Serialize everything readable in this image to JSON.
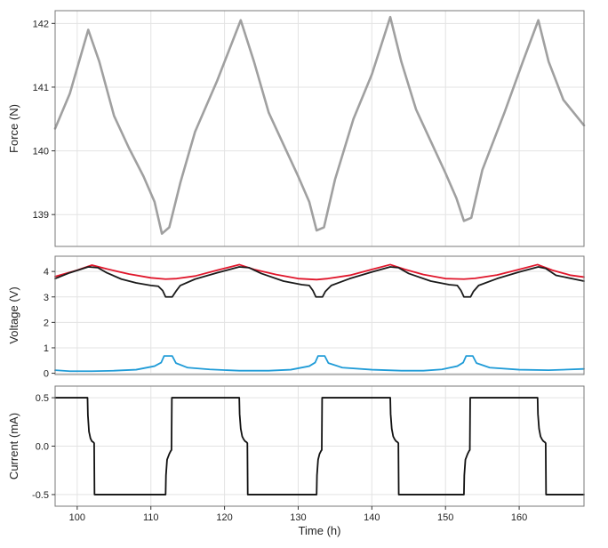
{
  "figure": {
    "xlabel": "Time (h)",
    "x_ticks": [
      100,
      110,
      120,
      130,
      140,
      150,
      160
    ],
    "xlim": [
      97,
      168.8
    ]
  },
  "colors": {
    "force": "#a0a0a0",
    "voltage_high": "#e0162b",
    "voltage_low": "#1a1a1a",
    "voltage_aux": "#1f9bd7",
    "current": "#111111",
    "grid": "#e3e3e3",
    "frame": "#7a7a7a"
  },
  "chart_data": [
    {
      "type": "line",
      "ylabel": "Force (N)",
      "ylim": [
        138.5,
        142.2
      ],
      "y_ticks": [
        139,
        140,
        141,
        142
      ],
      "grid": true,
      "series": [
        {
          "color_key": "force",
          "x": [
            97,
            99,
            101.5,
            103,
            105,
            107,
            109,
            110.5,
            111.5,
            112.5,
            114,
            116,
            119,
            122.2,
            124,
            126,
            128,
            130,
            131.5,
            132.5,
            133.5,
            135,
            137.5,
            140,
            142.5,
            144,
            146,
            148,
            150,
            151.5,
            152.5,
            153.5,
            155,
            158,
            160.5,
            162.6,
            164,
            166,
            168.8
          ],
          "values": [
            140.35,
            140.9,
            141.9,
            141.4,
            140.55,
            140.05,
            139.6,
            139.2,
            138.7,
            138.8,
            139.5,
            140.3,
            141.1,
            142.05,
            141.4,
            140.6,
            140.1,
            139.6,
            139.2,
            138.75,
            138.8,
            139.55,
            140.5,
            141.2,
            142.1,
            141.4,
            140.65,
            140.15,
            139.65,
            139.25,
            138.9,
            138.95,
            139.7,
            140.6,
            141.4,
            142.05,
            141.4,
            140.8,
            140.4
          ]
        }
      ]
    },
    {
      "type": "line",
      "ylabel": "Voltage (V)",
      "ylim": [
        -0.05,
        4.6
      ],
      "y_ticks": [
        0,
        1,
        2,
        3,
        4
      ],
      "grid": true,
      "series": [
        {
          "color_key": "voltage_high",
          "x": [
            97,
            100,
            102,
            104,
            107,
            110,
            112,
            113.5,
            116,
            119,
            122,
            124,
            127,
            130,
            132.5,
            134,
            137,
            140,
            142.5,
            144.5,
            147,
            150,
            152.5,
            154,
            157,
            160,
            162.5,
            164.5,
            167,
            168.8
          ],
          "values": [
            3.8,
            4.05,
            4.25,
            4.1,
            3.9,
            3.75,
            3.7,
            3.72,
            3.82,
            4.05,
            4.27,
            4.08,
            3.88,
            3.72,
            3.68,
            3.72,
            3.85,
            4.08,
            4.27,
            4.08,
            3.88,
            3.72,
            3.7,
            3.73,
            3.86,
            4.08,
            4.27,
            4.05,
            3.85,
            3.78
          ]
        },
        {
          "color_key": "voltage_low",
          "x": [
            97,
            99,
            101.5,
            102.8,
            104,
            106,
            108,
            110,
            111,
            111.6,
            112,
            112.9,
            113.4,
            114,
            116,
            119,
            122,
            123.3,
            125,
            128,
            130.5,
            131.5,
            132,
            132.4,
            133.3,
            133.7,
            134.5,
            137,
            140,
            142.5,
            143.6,
            145,
            148,
            150.5,
            151.6,
            152.1,
            152.5,
            153.4,
            153.8,
            154.5,
            157,
            160,
            162.6,
            163.6,
            165,
            168.8
          ],
          "values": [
            3.72,
            3.95,
            4.18,
            4.15,
            3.95,
            3.7,
            3.55,
            3.45,
            3.42,
            3.25,
            3.0,
            3.0,
            3.22,
            3.45,
            3.7,
            3.95,
            4.18,
            4.15,
            3.92,
            3.62,
            3.48,
            3.45,
            3.25,
            3.0,
            3.0,
            3.22,
            3.45,
            3.72,
            3.98,
            4.18,
            4.15,
            3.92,
            3.62,
            3.48,
            3.45,
            3.25,
            3.0,
            3.0,
            3.22,
            3.45,
            3.72,
            3.98,
            4.18,
            4.12,
            3.85,
            3.62
          ]
        },
        {
          "color_key": "voltage_aux",
          "x": [
            97,
            99,
            102,
            105,
            108,
            110.5,
            111.4,
            111.8,
            112.9,
            113.4,
            115,
            118,
            122,
            126,
            129,
            131.5,
            132.3,
            132.7,
            133.6,
            134.1,
            136,
            140,
            144,
            147,
            149.5,
            151.6,
            152.4,
            152.8,
            153.7,
            154.2,
            156,
            160,
            164,
            168.8
          ],
          "values": [
            0.12,
            0.08,
            0.08,
            0.1,
            0.14,
            0.28,
            0.42,
            0.68,
            0.68,
            0.4,
            0.22,
            0.15,
            0.1,
            0.1,
            0.14,
            0.28,
            0.42,
            0.68,
            0.68,
            0.4,
            0.22,
            0.14,
            0.1,
            0.1,
            0.15,
            0.28,
            0.42,
            0.68,
            0.68,
            0.4,
            0.22,
            0.14,
            0.12,
            0.17
          ]
        }
      ]
    },
    {
      "type": "line",
      "ylabel": "Current (mA)",
      "ylim": [
        -0.62,
        0.62
      ],
      "y_ticks": [
        0.5,
        0.0,
        -0.5
      ],
      "y_tick_labels": [
        "0.5",
        "0.0",
        "-0.5"
      ],
      "grid": true,
      "series": [
        {
          "color_key": "current",
          "x": [
            97,
            101.4,
            101.45,
            101.6,
            101.8,
            102.0,
            102.2,
            102.3,
            102.35,
            112.0,
            112.05,
            112.2,
            112.5,
            112.7,
            112.8,
            112.85,
            122.0,
            122.05,
            122.2,
            122.4,
            122.6,
            122.8,
            123.0,
            123.1,
            123.15,
            132.5,
            132.55,
            132.7,
            132.9,
            133.1,
            133.2,
            133.25,
            142.5,
            142.55,
            142.7,
            142.9,
            143.1,
            143.3,
            143.5,
            143.6,
            143.65,
            152.5,
            152.55,
            152.7,
            153.0,
            153.2,
            153.3,
            153.35,
            162.5,
            162.55,
            162.7,
            162.9,
            163.1,
            163.3,
            163.5,
            163.6,
            163.65,
            168.8
          ],
          "values": [
            0.5,
            0.5,
            0.32,
            0.15,
            0.08,
            0.05,
            0.04,
            0.03,
            -0.5,
            -0.5,
            -0.3,
            -0.14,
            -0.08,
            -0.05,
            -0.04,
            0.5,
            0.5,
            0.33,
            0.18,
            0.1,
            0.07,
            0.05,
            0.04,
            0.03,
            -0.5,
            -0.5,
            -0.3,
            -0.14,
            -0.08,
            -0.05,
            -0.04,
            0.5,
            0.5,
            0.33,
            0.18,
            0.1,
            0.07,
            0.05,
            0.04,
            0.03,
            -0.5,
            -0.5,
            -0.3,
            -0.14,
            -0.08,
            -0.05,
            -0.04,
            0.5,
            0.5,
            0.33,
            0.18,
            0.1,
            0.07,
            0.05,
            0.04,
            0.03,
            -0.5,
            -0.5
          ]
        }
      ]
    }
  ]
}
